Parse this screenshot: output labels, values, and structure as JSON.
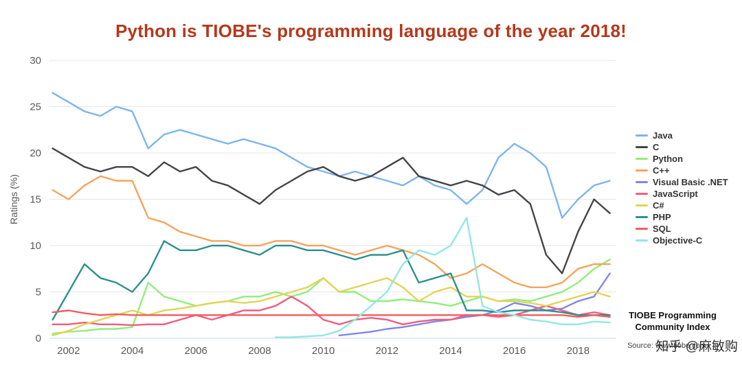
{
  "title": "Python is TIOBE's programming language of the year 2018!",
  "footer": {
    "brand_line1": "TIOBE Programming",
    "brand_line2": "Community Index",
    "source": "Source: www.tiobe.com",
    "watermark": "知乎 @麻敏购"
  },
  "colors": {
    "title": "#b5381b",
    "grid": "#e6e6e6",
    "axis_line": "#ccd6eb",
    "tick_text": "#58585a"
  },
  "chart_data": {
    "type": "line",
    "title": "Python is TIOBE's programming language of the year 2018!",
    "xlabel": "",
    "ylabel": "Ratings (%)",
    "xlim": [
      2001.4,
      2019.2
    ],
    "ylim": [
      0,
      30
    ],
    "xticks": [
      2002,
      2004,
      2006,
      2008,
      2010,
      2012,
      2014,
      2016,
      2018
    ],
    "yticks": [
      0,
      5,
      10,
      15,
      20,
      25,
      30
    ],
    "grid": "horizontal",
    "legend_position": "right",
    "x": [
      2001.5,
      2002,
      2002.5,
      2003,
      2003.5,
      2004,
      2004.5,
      2005,
      2005.5,
      2006,
      2006.5,
      2007,
      2007.5,
      2008,
      2008.5,
      2009,
      2009.5,
      2010,
      2010.5,
      2011,
      2011.5,
      2012,
      2012.5,
      2013,
      2013.5,
      2014,
      2014.5,
      2015,
      2015.5,
      2016,
      2016.5,
      2017,
      2017.5,
      2018,
      2018.5,
      2019
    ],
    "series": [
      {
        "name": "Java",
        "color": "#7cb5ec",
        "values": [
          26.5,
          25.5,
          24.5,
          24,
          25,
          24.5,
          20.5,
          22,
          22.5,
          22,
          21.5,
          21,
          21.5,
          21,
          20.5,
          19.5,
          18.5,
          18,
          17.5,
          18,
          17.5,
          17,
          16.5,
          17.5,
          16.5,
          16,
          14.5,
          16,
          19.5,
          21,
          20,
          18.5,
          13,
          15,
          16.5,
          17
        ]
      },
      {
        "name": "C",
        "color": "#434348",
        "values": [
          20.5,
          19.5,
          18.5,
          18,
          18.5,
          18.5,
          17.5,
          19,
          18,
          18.5,
          17,
          16.5,
          15.5,
          14.5,
          16,
          17,
          18,
          18.5,
          17.5,
          17,
          17.5,
          18.5,
          19.5,
          17.5,
          17,
          16.5,
          17,
          16.5,
          15.5,
          16,
          14.5,
          9,
          7,
          11.5,
          15,
          13.5
        ]
      },
      {
        "name": "Python",
        "color": "#90ed7d",
        "values": [
          0.5,
          0.7,
          0.8,
          1,
          1,
          1.2,
          6,
          4.5,
          4,
          3.5,
          3.8,
          4,
          4.5,
          4.5,
          5,
          4.5,
          5,
          6.5,
          5,
          5,
          4,
          4,
          4.2,
          4,
          3.8,
          3.5,
          4,
          4.5,
          4,
          4.2,
          4,
          4.5,
          5,
          6,
          7.5,
          8.5
        ]
      },
      {
        "name": "C++",
        "color": "#f7a35c",
        "values": [
          16,
          15,
          16.5,
          17.5,
          17,
          17,
          13,
          12.5,
          11.5,
          11,
          10.5,
          10.5,
          10,
          10,
          10.5,
          10.5,
          10,
          10,
          9.5,
          9,
          9.5,
          10,
          9.5,
          9,
          8,
          6.5,
          7,
          8,
          7,
          6,
          5.5,
          5.5,
          6,
          7.5,
          8,
          8
        ]
      },
      {
        "name": "Visual Basic .NET",
        "color": "#8085e9",
        "values": [
          null,
          null,
          null,
          null,
          null,
          null,
          null,
          null,
          null,
          null,
          null,
          null,
          null,
          null,
          null,
          null,
          null,
          null,
          0.3,
          0.5,
          0.7,
          1,
          1.2,
          1.5,
          1.8,
          2,
          2.3,
          2.5,
          3,
          3.8,
          3.5,
          3,
          3.2,
          4,
          4.5,
          7
        ]
      },
      {
        "name": "JavaScript",
        "color": "#f15c80",
        "values": [
          1.5,
          1.5,
          1.7,
          1.5,
          1.5,
          1.4,
          1.5,
          1.5,
          2,
          2.5,
          2,
          2.5,
          3,
          3,
          3.5,
          4.5,
          3.5,
          2,
          1.5,
          2,
          2.2,
          2,
          1.5,
          1.8,
          2,
          2,
          2.5,
          2.5,
          2.3,
          2.5,
          3,
          3.5,
          3,
          2.5,
          2.8,
          2.5
        ]
      },
      {
        "name": "C#",
        "color": "#e4d354",
        "values": [
          0.3,
          0.8,
          1.5,
          2,
          2.5,
          3,
          2.5,
          3,
          3.2,
          3.5,
          3.8,
          4,
          3.8,
          4,
          4.5,
          5,
          5.5,
          6.5,
          5,
          5.5,
          6,
          6.5,
          5.5,
          4,
          5,
          5.5,
          4.5,
          4.5,
          4,
          4,
          3.8,
          3.5,
          4,
          4.5,
          5,
          4.5
        ]
      },
      {
        "name": "PHP",
        "color": "#2b908f",
        "values": [
          2,
          5,
          8,
          6.5,
          6,
          5,
          7,
          10.5,
          9.5,
          9.5,
          10,
          10,
          9.5,
          9,
          10,
          10,
          9.5,
          9.5,
          9,
          8.5,
          9,
          9,
          9.5,
          6,
          6.5,
          7,
          3,
          3,
          2.8,
          3,
          3,
          3,
          2.8,
          2.5,
          2.5,
          2.5
        ]
      },
      {
        "name": "SQL",
        "color": "#f45b5b",
        "values": [
          2.8,
          3,
          2.7,
          2.5,
          2.6,
          2.5,
          2.5,
          2.5,
          2.5,
          2.5,
          2.5,
          2.5,
          2.5,
          2.5,
          2.5,
          2.5,
          2.5,
          2.5,
          2.5,
          2.5,
          2.5,
          2.5,
          2.5,
          2.5,
          2.5,
          2.5,
          2.5,
          2.5,
          2.5,
          2.5,
          2.5,
          2.5,
          2.5,
          2.3,
          2.5,
          2.3
        ]
      },
      {
        "name": "Objective-C",
        "color": "#91e8e1",
        "values": [
          null,
          null,
          null,
          null,
          null,
          null,
          null,
          null,
          null,
          null,
          null,
          null,
          null,
          null,
          0.1,
          0.1,
          0.2,
          0.3,
          0.8,
          2,
          3.5,
          5,
          8,
          9.5,
          9,
          10,
          13,
          3.5,
          2.8,
          2.5,
          2,
          1.8,
          1.5,
          1.5,
          1.8,
          1.7
        ]
      }
    ]
  }
}
